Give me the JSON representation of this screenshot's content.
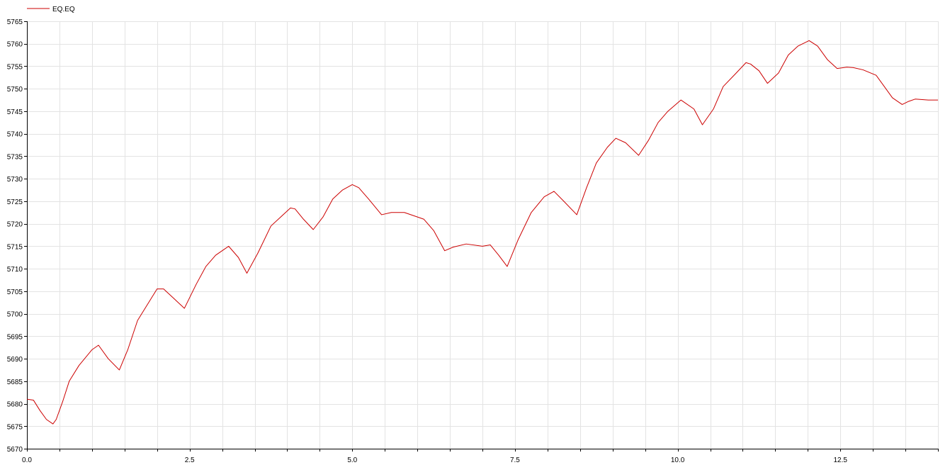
{
  "colors": {
    "series": "#cc0000",
    "grid": "#e3e3e3",
    "axis": "#000000",
    "background": "#ffffff"
  },
  "chart_data": {
    "type": "line",
    "title": "",
    "xlabel": "",
    "ylabel": "",
    "grid": true,
    "legend_position": "top-left",
    "xlim": [
      0,
      14
    ],
    "ylim": [
      5670,
      5765
    ],
    "x_ticks": [
      0.0,
      2.5,
      5.0,
      7.5,
      10.0,
      12.5
    ],
    "x_tick_labels": [
      "0.0",
      "2.5",
      "5.0",
      "7.5",
      "10.0",
      "12.5"
    ],
    "y_ticks": [
      5670,
      5675,
      5680,
      5685,
      5690,
      5695,
      5700,
      5705,
      5710,
      5715,
      5720,
      5725,
      5730,
      5735,
      5740,
      5745,
      5750,
      5755,
      5760,
      5765
    ],
    "y_tick_labels": [
      "5670",
      "5675",
      "5680",
      "5685",
      "5690",
      "5695",
      "5700",
      "5705",
      "5710",
      "5715",
      "5720",
      "5725",
      "5730",
      "5735",
      "5740",
      "5745",
      "5750",
      "5755",
      "5760",
      "5765"
    ],
    "series": [
      {
        "name": "EQ.EQ",
        "x": [
          0.0,
          0.1,
          0.2,
          0.3,
          0.4,
          0.45,
          0.55,
          0.65,
          0.8,
          1.0,
          1.1,
          1.25,
          1.42,
          1.55,
          1.7,
          1.85,
          2.0,
          2.1,
          2.25,
          2.42,
          2.6,
          2.75,
          2.9,
          3.05,
          3.1,
          3.25,
          3.38,
          3.55,
          3.75,
          3.9,
          4.05,
          4.12,
          4.25,
          4.4,
          4.55,
          4.7,
          4.85,
          5.0,
          5.1,
          5.25,
          5.45,
          5.6,
          5.8,
          6.1,
          6.25,
          6.42,
          6.55,
          6.75,
          7.0,
          7.12,
          7.25,
          7.38,
          7.55,
          7.75,
          7.95,
          8.1,
          8.25,
          8.45,
          8.6,
          8.75,
          8.92,
          9.05,
          9.2,
          9.4,
          9.55,
          9.7,
          9.85,
          10.05,
          10.25,
          10.38,
          10.55,
          10.7,
          10.9,
          11.05,
          11.12,
          11.25,
          11.38,
          11.55,
          11.7,
          11.85,
          12.02,
          12.15,
          12.3,
          12.45,
          12.6,
          12.7,
          12.85,
          13.05,
          13.2,
          13.3,
          13.45,
          13.55,
          13.65,
          13.85,
          14.0
        ],
        "values": [
          5681,
          5680.8,
          5678.5,
          5676.5,
          5675.5,
          5676.5,
          5680.5,
          5685,
          5688.5,
          5692,
          5693,
          5690,
          5687.5,
          5692,
          5698.5,
          5702,
          5705.5,
          5705.5,
          5703.5,
          5701.2,
          5706.5,
          5710.5,
          5713,
          5714.5,
          5715,
          5712.5,
          5709,
          5713.5,
          5719.5,
          5721.5,
          5723.5,
          5723.3,
          5721,
          5718.7,
          5721.5,
          5725.5,
          5727.5,
          5728.7,
          5728,
          5725.5,
          5722,
          5722.5,
          5722.5,
          5721,
          5718.5,
          5714,
          5714.8,
          5715.5,
          5715,
          5715.3,
          5713,
          5710.5,
          5716.5,
          5722.5,
          5726,
          5727.2,
          5725,
          5722,
          5728,
          5733.5,
          5737,
          5739,
          5738,
          5735.2,
          5738.5,
          5742.5,
          5745,
          5747.5,
          5745.5,
          5742,
          5745.5,
          5750.5,
          5753.5,
          5755.8,
          5755.5,
          5754,
          5751.2,
          5753.5,
          5757.5,
          5759.5,
          5760.7,
          5759.5,
          5756.5,
          5754.5,
          5754.8,
          5754.7,
          5754.2,
          5753,
          5750,
          5748,
          5746.5,
          5747.2,
          5747.7,
          5747.5,
          5747.5
        ]
      }
    ]
  }
}
